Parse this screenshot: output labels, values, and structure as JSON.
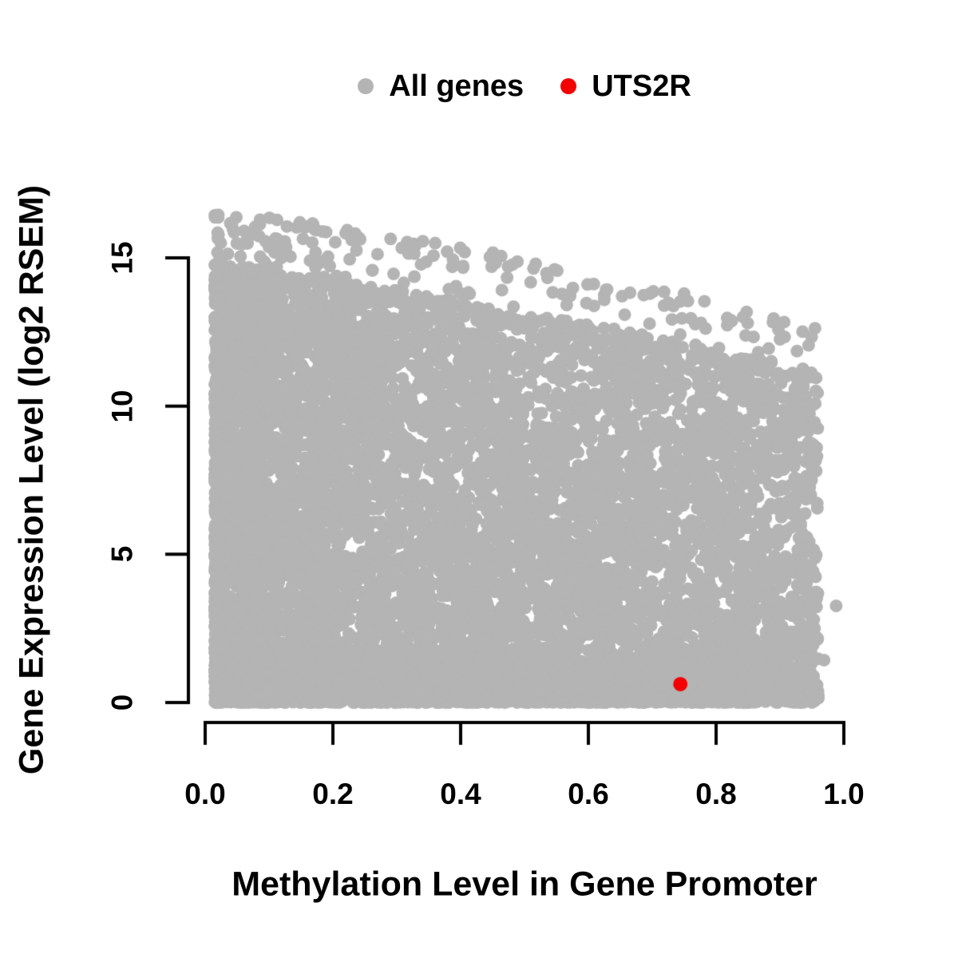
{
  "legend": {
    "items": [
      {
        "label": "All genes",
        "color": "#b4b4b4"
      },
      {
        "label": "UTS2R",
        "color": "#f40000"
      }
    ]
  },
  "chart_data": {
    "type": "scatter",
    "title": "",
    "xlabel": "Methylation Level in Gene Promoter",
    "ylabel": "Gene Expression Level (log2 RSEM)",
    "grid": false,
    "legend_position": "top-center",
    "axis_color": "#000000",
    "x_axis": {
      "range": [
        0.0,
        1.0
      ],
      "tick_values": [
        0.0,
        0.2,
        0.4,
        0.6,
        0.8,
        1.0
      ],
      "tick_labels": [
        "0.0",
        "0.2",
        "0.4",
        "0.6",
        "0.8",
        "1.0"
      ]
    },
    "y_axis": {
      "range": [
        0,
        16.7
      ],
      "tick_values": [
        0,
        5,
        10,
        15
      ],
      "tick_labels": [
        "0",
        "5",
        "10",
        "15"
      ]
    },
    "series": [
      {
        "name": "All genes",
        "color": "#b4b4b4",
        "marker": "filled-circle",
        "n_points": 9500,
        "x_range": [
          0.015,
          0.96
        ],
        "y_range": [
          0,
          16.6
        ],
        "trend": "very dense cloud with negative correlation; upper envelope falls from ~16.6 at x=0 to ~12.4 at x=0.96; solid band along y=0 across full x range",
        "outlier_points": [
          [
            0.988,
            3.26
          ],
          [
            0.969,
            1.43
          ]
        ],
        "generator": {
          "seed": 7,
          "x_pow": 1.45,
          "bottom_band_frac": 0.16,
          "sparse_top_frac": 0.02,
          "bottom_band_height": 1.9,
          "dense_top_poly": [
            14.9,
            3.0,
            0.9
          ],
          "upper_env_poly": [
            16.7,
            2.6,
            1.7
          ]
        }
      },
      {
        "name": "UTS2R",
        "color": "#f40000",
        "marker": "filled-circle",
        "points": [
          [
            0.744,
            0.62
          ]
        ]
      }
    ]
  }
}
